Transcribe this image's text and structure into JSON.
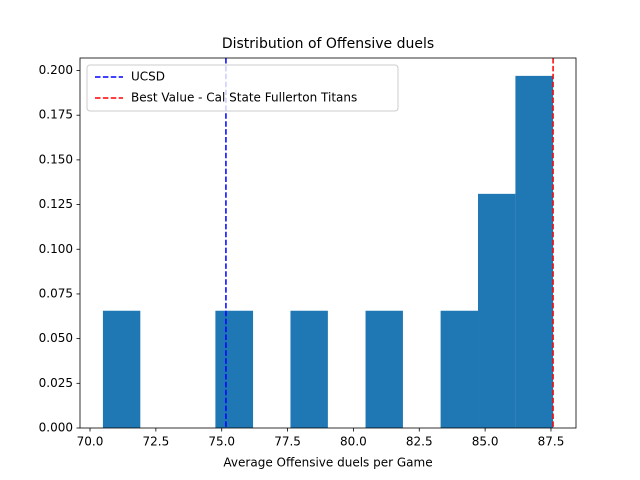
{
  "chart_data": {
    "type": "histogram",
    "title": "Distribution of Offensive duels",
    "x_label": "Average Offensive duels per Game",
    "bins": [
      70.49,
      71.91,
      73.34,
      74.76,
      76.19,
      77.61,
      79.03,
      80.46,
      81.88,
      83.31,
      84.73,
      86.15,
      87.58
    ],
    "values": [
      0.0656,
      0,
      0,
      0.0656,
      0,
      0.0656,
      0,
      0.0656,
      0,
      0.0656,
      0.131,
      0.197
    ],
    "color": "#1f77b4",
    "vlines": [
      {
        "name": "UCSD",
        "x": 75.16,
        "color": "#0000ff"
      },
      {
        "name": "Best Value - Cal State Fullerton Titans",
        "x": 87.58,
        "color": "#ff0000"
      }
    ],
    "legend": "upper left",
    "xlim": [
      69.62,
      88.45
    ],
    "xticks": [
      {
        "value": 70,
        "label": "70.0"
      },
      {
        "value": 72.5,
        "label": "72.5"
      },
      {
        "value": 75,
        "label": "75.0"
      },
      {
        "value": 77.5,
        "label": "77.5"
      },
      {
        "value": 80,
        "label": "80.0"
      },
      {
        "value": 82.5,
        "label": "82.5"
      },
      {
        "value": 85,
        "label": "85.0"
      },
      {
        "value": 87.5,
        "label": "87.5"
      }
    ],
    "ylim": [
      0,
      0.207
    ],
    "yticks": [
      {
        "value": 0,
        "label": "0.000"
      },
      {
        "value": 0.025,
        "label": "0.025"
      },
      {
        "value": 0.05,
        "label": "0.050"
      },
      {
        "value": 0.075,
        "label": "0.075"
      },
      {
        "value": 0.1,
        "label": "0.100"
      },
      {
        "value": 0.125,
        "label": "0.125"
      },
      {
        "value": 0.15,
        "label": "0.150"
      },
      {
        "value": 0.175,
        "label": "0.175"
      },
      {
        "value": 0.2,
        "label": "0.200"
      }
    ]
  }
}
